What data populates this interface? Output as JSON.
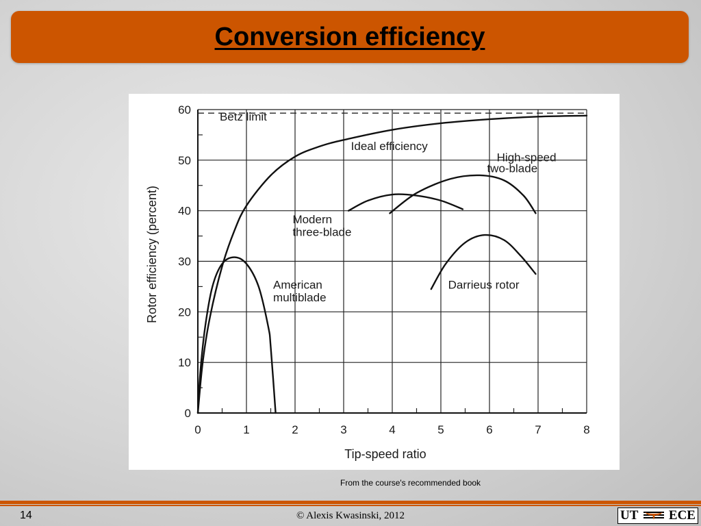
{
  "slide": {
    "title": "Conversion efficiency",
    "caption": "From the course's recommended book",
    "page_number": "14",
    "copyright": "© Alexis Kwasinski, 2012",
    "logo_left": "UT",
    "logo_right": "ECE",
    "accent_color": "#cc5500"
  },
  "chart_data": {
    "type": "line",
    "title": "",
    "xlabel": "Tip-speed ratio",
    "ylabel": "Rotor efficiency (percent)",
    "xlim": [
      0,
      8
    ],
    "ylim": [
      0,
      60
    ],
    "x_ticks": [
      "0",
      "1",
      "2",
      "3",
      "4",
      "5",
      "6",
      "7",
      "8"
    ],
    "y_ticks": [
      "0",
      "10",
      "20",
      "30",
      "40",
      "50",
      "60"
    ],
    "grid": true,
    "betz_limit": {
      "label": "Betz limit",
      "y": 59.3
    },
    "series": [
      {
        "name": "Ideal efficiency",
        "points": [
          [
            0,
            0
          ],
          [
            0.1,
            10
          ],
          [
            0.25,
            19
          ],
          [
            0.5,
            29
          ],
          [
            0.75,
            36
          ],
          [
            1,
            41
          ],
          [
            1.5,
            47
          ],
          [
            2,
            50.7
          ],
          [
            2.5,
            52.7
          ],
          [
            3,
            54
          ],
          [
            4,
            56
          ],
          [
            5,
            57.3
          ],
          [
            6,
            58.1
          ],
          [
            7,
            58.6
          ],
          [
            8,
            58.8
          ]
        ]
      },
      {
        "name": "American multiblade",
        "points": [
          [
            0,
            0
          ],
          [
            0.05,
            8
          ],
          [
            0.15,
            17
          ],
          [
            0.3,
            25
          ],
          [
            0.5,
            29.5
          ],
          [
            0.75,
            30.8
          ],
          [
            1.0,
            29.5
          ],
          [
            1.25,
            25
          ],
          [
            1.45,
            17
          ],
          [
            1.5,
            13
          ],
          [
            1.6,
            0
          ]
        ]
      },
      {
        "name": "Modern three-blade",
        "points": [
          [
            3.1,
            40
          ],
          [
            3.5,
            42
          ],
          [
            4.0,
            43.2
          ],
          [
            4.5,
            43
          ],
          [
            5.0,
            42
          ],
          [
            5.45,
            40.3
          ]
        ]
      },
      {
        "name": "High-speed two-blade",
        "points": [
          [
            3.95,
            39.5
          ],
          [
            4.5,
            43.5
          ],
          [
            5.2,
            46.3
          ],
          [
            5.8,
            47
          ],
          [
            6.3,
            46
          ],
          [
            6.7,
            43
          ],
          [
            6.95,
            39.5
          ]
        ]
      },
      {
        "name": "Darrieus rotor",
        "points": [
          [
            4.8,
            24.5
          ],
          [
            5.1,
            29.5
          ],
          [
            5.5,
            33.7
          ],
          [
            5.9,
            35.2
          ],
          [
            6.3,
            34.2
          ],
          [
            6.65,
            31
          ],
          [
            6.95,
            27.5
          ]
        ]
      }
    ],
    "annotations": [
      {
        "id": "betz",
        "text": "Betz limit"
      },
      {
        "id": "ideal",
        "text": "Ideal efficiency"
      },
      {
        "id": "twoblade1",
        "text": "High-speed"
      },
      {
        "id": "twoblade2",
        "text": "two-blade"
      },
      {
        "id": "three1",
        "text": "Modern"
      },
      {
        "id": "three2",
        "text": "three-blade"
      },
      {
        "id": "amer1",
        "text": "American"
      },
      {
        "id": "amer2",
        "text": "multiblade"
      },
      {
        "id": "darrieus",
        "text": "Darrieus rotor"
      }
    ]
  }
}
